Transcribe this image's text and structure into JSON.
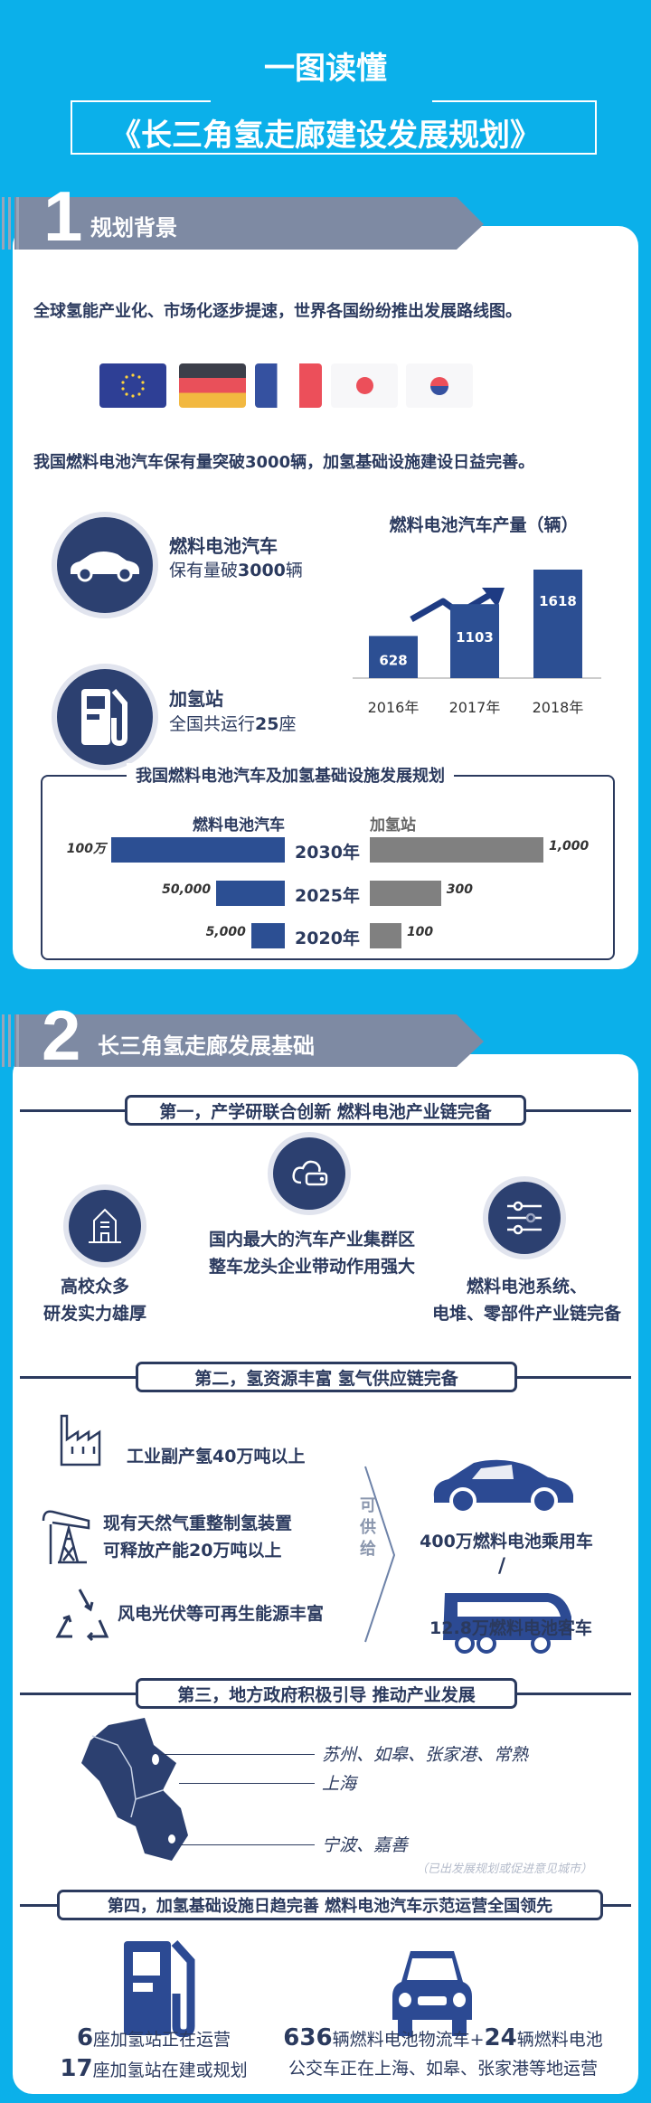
{
  "header": {
    "title_small": "一图读懂",
    "title_main": "《长三角氢走廊建设发展规划》"
  },
  "section1": {
    "number": "1",
    "title": "规划背景",
    "line1": "全球氢能产业化、市场化逐步提速，世界各国纷纷推出发展路线图。",
    "flags": [
      "eu-flag",
      "germany-flag",
      "france-flag",
      "japan-flag",
      "korea-flag"
    ],
    "line2": "我国燃料电池汽车保有量突破3000辆，加氢基础设施建设日益完善。",
    "stat_car": {
      "title": "燃料电池汽车",
      "desc_pre": "保有量破",
      "desc_num": "3000",
      "desc_post": "辆"
    },
    "stat_station": {
      "title": "加氢站",
      "desc_pre": "全国共运行",
      "desc_num": "25",
      "desc_post": "座"
    },
    "plan_title": "我国燃料电池汽车及加氢基础设施发展规划"
  },
  "chart_data": [
    {
      "type": "bar",
      "title": "燃料电池汽车产量（辆）",
      "categories": [
        "2016年",
        "2017年",
        "2018年"
      ],
      "values": [
        628,
        1103,
        1618
      ],
      "color": "#2c4f93"
    },
    {
      "type": "bar",
      "title": "我国燃料电池汽车及加氢基础设施发展规划",
      "categories": [
        "2030年",
        "2025年",
        "2020年"
      ],
      "series": [
        {
          "name": "燃料电池汽车",
          "values": [
            1000000,
            50000,
            5000
          ],
          "labels": [
            "100万",
            "50,000",
            "5,000"
          ],
          "color": "#2c4f93"
        },
        {
          "name": "加氢站",
          "values": [
            1000,
            300,
            100
          ],
          "labels": [
            "1,000",
            "300",
            "100"
          ],
          "color": "#808080"
        }
      ]
    }
  ],
  "section2": {
    "number": "2",
    "title": "长三角氢走廊发展基础",
    "b1": "第一，产学研联合创新   燃料电池产业链完备",
    "b1_items": [
      [
        "高校众多",
        "研发实力雄厚"
      ],
      [
        "国内最大的汽车产业集群区",
        "整车龙头企业带动作用强大"
      ],
      [
        "燃料电池系统、",
        "电堆、零部件产业链完备"
      ]
    ],
    "b2": "第二，氢资源丰富   氢气供应链完备",
    "b2_sources": [
      [
        "工业副产氢40万吨以上"
      ],
      [
        "现有天然气重整制氢装置",
        "可释放产能20万吨以上"
      ],
      [
        "风电光伏等可再生能源丰富"
      ]
    ],
    "b2_supply": "可供给",
    "b2_targets": [
      "400万燃料电池乘用车",
      "/",
      "12.8万燃料电池客车"
    ],
    "b3": "第三，地方政府积极引导   推动产业发展",
    "b3_cities": [
      "苏州、如皋、张家港、常熟",
      "上海",
      "宁波、嘉善"
    ],
    "b3_note": "（已出发展规划或促进意见城市）",
    "b4": "第四，加氢基础设施日趋完善   燃料电池汽车示范运营全国领先",
    "b4_left": {
      "n1": "6",
      "t1": "座加氢站正在运营",
      "n2": "17",
      "t2": "座加氢站在建或规划"
    },
    "b4_right": {
      "n1": "636",
      "t1": "辆燃料电池物流车+",
      "n2": "24",
      "t2": "辆燃料电池",
      "t3": "公交车正在上海、如皋、张家港等地运营"
    }
  },
  "colors": {
    "background": "#0bb0ea",
    "navy": "#2b3a5e",
    "bar_blue": "#2c4f93",
    "bar_gray": "#808080",
    "band_gray": "#7e8aa3"
  }
}
